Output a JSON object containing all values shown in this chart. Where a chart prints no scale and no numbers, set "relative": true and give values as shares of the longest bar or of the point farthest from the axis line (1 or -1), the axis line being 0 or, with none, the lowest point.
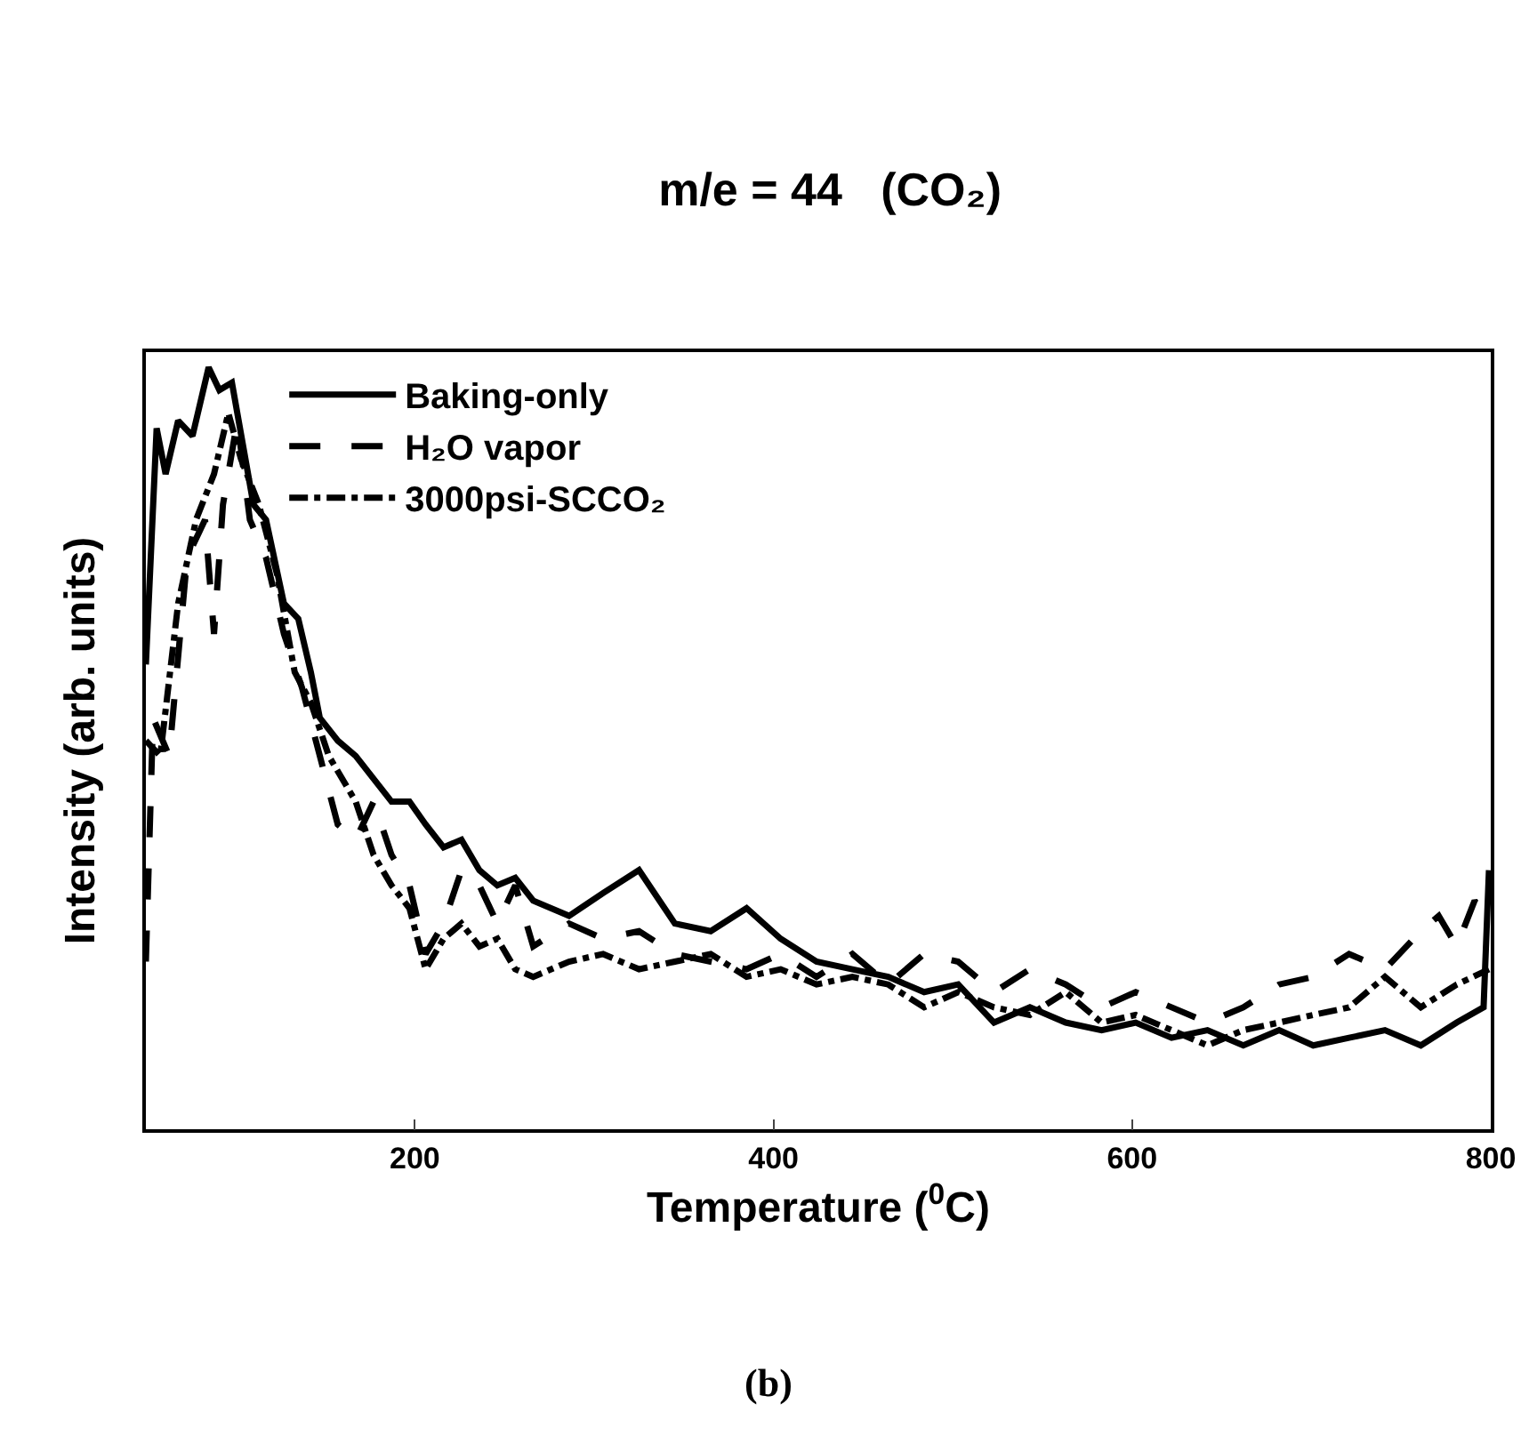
{
  "chart_data": {
    "type": "line",
    "title": "m/e = 44   (CO₂)",
    "xlabel": "Temperature ($^{0}$C)",
    "ylabel": "Intensity (arb. units)",
    "relative": true,
    "xlim": [
      50,
      800
    ],
    "xticks": [
      200,
      400,
      600,
      800
    ],
    "legend": "top left",
    "grid": false,
    "marker": "none",
    "annotations": [
      "(b)"
    ],
    "series": [
      {
        "name": "Baking-only",
        "color": "#000000",
        "line_style": "solid",
        "x": [
          50,
          56,
          61,
          68,
          76,
          85,
          91,
          98,
          104,
          110,
          117,
          127,
          135,
          142,
          147,
          157,
          167,
          177,
          187,
          197,
          206,
          216,
          226,
          236,
          246,
          256,
          266,
          286,
          305,
          325,
          345,
          365,
          385,
          404,
          424,
          444,
          464,
          484,
          503,
          523,
          543,
          563,
          583,
          602,
          622,
          642,
          662,
          682,
          701,
          721,
          741,
          761,
          781,
          796,
          799
        ],
        "values": [
          0.61,
          0.92,
          0.86,
          0.93,
          0.91,
          1,
          0.97,
          0.98,
          0.9,
          0.82,
          0.8,
          0.69,
          0.67,
          0.6,
          0.54,
          0.51,
          0.49,
          0.46,
          0.43,
          0.43,
          0.4,
          0.37,
          0.38,
          0.34,
          0.32,
          0.33,
          0.3,
          0.28,
          0.31,
          0.34,
          0.27,
          0.26,
          0.29,
          0.25,
          0.22,
          0.21,
          0.2,
          0.18,
          0.19,
          0.14,
          0.16,
          0.14,
          0.13,
          0.14,
          0.12,
          0.13,
          0.11,
          0.13,
          0.11,
          0.12,
          0.13,
          0.11,
          0.14,
          0.16,
          0.34
        ]
      },
      {
        "name": "H₂O vapor",
        "color": "#000000",
        "line_style": "dashed",
        "x": [
          50,
          54,
          63,
          73,
          83,
          88,
          93,
          101,
          108,
          117,
          127,
          137,
          147,
          157,
          167,
          177,
          187,
          197,
          206,
          216,
          226,
          236,
          246,
          256,
          266,
          286,
          305,
          325,
          345,
          365,
          385,
          404,
          424,
          444,
          464,
          484,
          503,
          523,
          543,
          563,
          583,
          602,
          622,
          642,
          662,
          682,
          701,
          721,
          741,
          761,
          771,
          781,
          791,
          799
        ],
        "values": [
          0.22,
          0.54,
          0.49,
          0.75,
          0.8,
          0.65,
          0.82,
          0.93,
          0.8,
          0.75,
          0.65,
          0.58,
          0.49,
          0.4,
          0.38,
          0.43,
          0.36,
          0.32,
          0.23,
          0.27,
          0.34,
          0.32,
          0.27,
          0.32,
          0.24,
          0.27,
          0.25,
          0.26,
          0.23,
          0.22,
          0.21,
          0.23,
          0.2,
          0.23,
          0.19,
          0.23,
          0.22,
          0.18,
          0.21,
          0.19,
          0.16,
          0.18,
          0.16,
          0.14,
          0.16,
          0.19,
          0.2,
          0.23,
          0.21,
          0.26,
          0.28,
          0.24,
          0.3,
          0.27
        ]
      },
      {
        "name": "3000psi-SCCO₂",
        "color": "#000000",
        "line_style": "dashdot",
        "x": [
          50,
          58,
          68,
          78,
          88,
          96,
          103,
          113,
          123,
          133,
          142,
          152,
          167,
          177,
          187,
          197,
          206,
          216,
          226,
          236,
          246,
          256,
          266,
          286,
          305,
          325,
          345,
          365,
          385,
          404,
          424,
          444,
          464,
          484,
          503,
          523,
          543,
          563,
          583,
          602,
          622,
          642,
          662,
          682,
          701,
          721,
          741,
          761,
          781,
          799
        ],
        "values": [
          0.51,
          0.49,
          0.69,
          0.8,
          0.86,
          0.94,
          0.88,
          0.82,
          0.73,
          0.6,
          0.56,
          0.49,
          0.43,
          0.36,
          0.32,
          0.29,
          0.21,
          0.25,
          0.27,
          0.24,
          0.25,
          0.21,
          0.2,
          0.22,
          0.23,
          0.21,
          0.22,
          0.23,
          0.2,
          0.21,
          0.19,
          0.2,
          0.19,
          0.16,
          0.18,
          0.16,
          0.15,
          0.18,
          0.14,
          0.15,
          0.13,
          0.11,
          0.13,
          0.14,
          0.15,
          0.16,
          0.2,
          0.16,
          0.19,
          0.21
        ]
      }
    ]
  }
}
